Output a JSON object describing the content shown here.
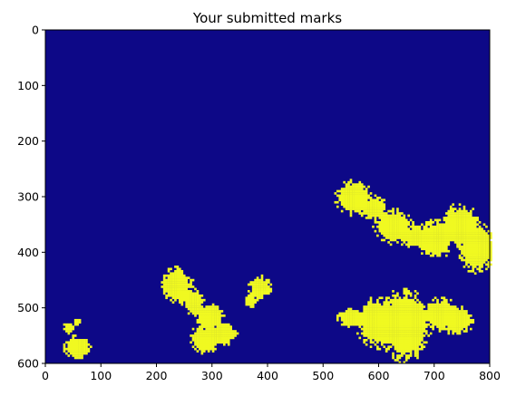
{
  "chart_data": {
    "type": "heatmap",
    "title": "Your submitted marks",
    "xlabel": "",
    "ylabel": "",
    "xlim": [
      0,
      800
    ],
    "ylim": [
      600,
      0
    ],
    "x_ticks": [
      0,
      100,
      200,
      300,
      400,
      500,
      600,
      700,
      800
    ],
    "y_ticks": [
      0,
      100,
      200,
      300,
      400,
      500,
      600
    ],
    "background_color": "#0d0887",
    "mark_color": "#f0f921",
    "grid": false,
    "regions": [
      {
        "cx": 553,
        "cy": 300,
        "rx": 30,
        "ry": 28
      },
      {
        "cx": 590,
        "cy": 318,
        "rx": 22,
        "ry": 18
      },
      {
        "cx": 625,
        "cy": 352,
        "rx": 30,
        "ry": 28
      },
      {
        "cx": 665,
        "cy": 370,
        "rx": 25,
        "ry": 18
      },
      {
        "cx": 700,
        "cy": 375,
        "rx": 30,
        "ry": 30
      },
      {
        "cx": 745,
        "cy": 350,
        "rx": 30,
        "ry": 32
      },
      {
        "cx": 775,
        "cy": 390,
        "rx": 30,
        "ry": 38
      },
      {
        "cx": 550,
        "cy": 515,
        "rx": 24,
        "ry": 15
      },
      {
        "cx": 600,
        "cy": 525,
        "rx": 35,
        "ry": 38
      },
      {
        "cx": 645,
        "cy": 530,
        "rx": 42,
        "ry": 55
      },
      {
        "cx": 710,
        "cy": 510,
        "rx": 30,
        "ry": 25
      },
      {
        "cx": 740,
        "cy": 520,
        "rx": 25,
        "ry": 22
      },
      {
        "cx": 235,
        "cy": 458,
        "rx": 25,
        "ry": 28
      },
      {
        "cx": 265,
        "cy": 488,
        "rx": 18,
        "ry": 20
      },
      {
        "cx": 295,
        "cy": 515,
        "rx": 22,
        "ry": 22
      },
      {
        "cx": 285,
        "cy": 555,
        "rx": 25,
        "ry": 22
      },
      {
        "cx": 320,
        "cy": 545,
        "rx": 20,
        "ry": 18
      },
      {
        "cx": 385,
        "cy": 462,
        "rx": 18,
        "ry": 18
      },
      {
        "cx": 368,
        "cy": 485,
        "rx": 10,
        "ry": 12
      },
      {
        "cx": 40,
        "cy": 535,
        "rx": 10,
        "ry": 9
      },
      {
        "cx": 55,
        "cy": 525,
        "rx": 6,
        "ry": 6
      },
      {
        "cx": 55,
        "cy": 570,
        "rx": 22,
        "ry": 18
      }
    ]
  }
}
